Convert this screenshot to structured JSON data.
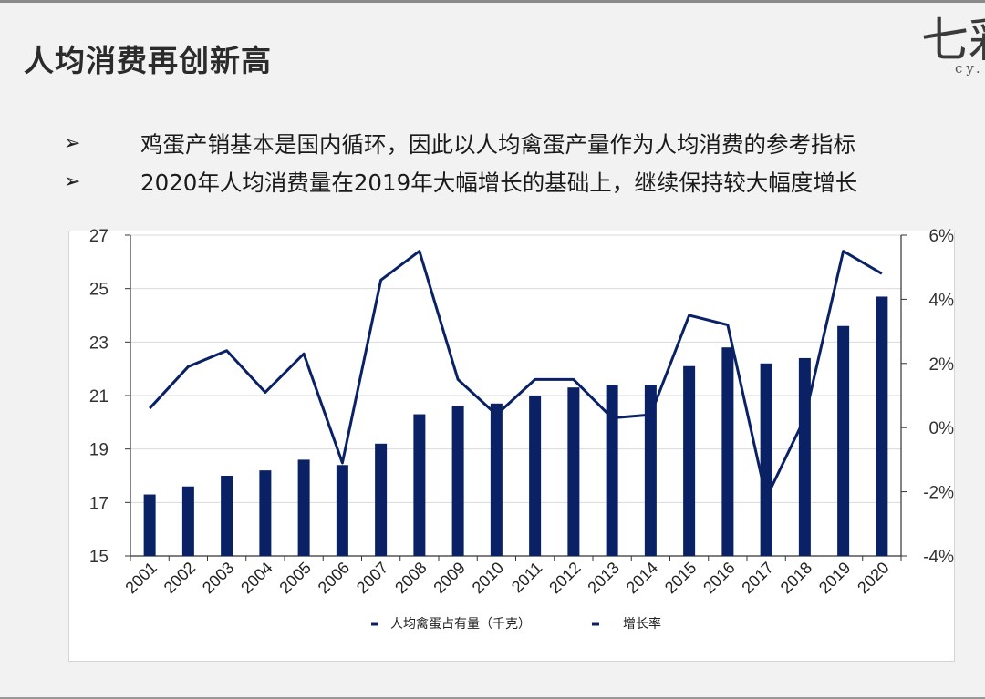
{
  "slide": {
    "title": "人均消费再创新高",
    "logo_glyph": "七彩",
    "logo_sub": "cy..."
  },
  "bullets": [
    {
      "icon": "arrow-bullet-icon",
      "marker": "➢",
      "text": "鸡蛋产销基本是国内循环，因此以人均禽蛋产量作为人均消费的参考指标"
    },
    {
      "icon": "arrow-bullet-icon",
      "marker": "➢",
      "text": "2020年人均消费量在2019年大幅增长的基础上，继续保持较大幅度增长"
    }
  ],
  "chart_data": {
    "type": "bar+line",
    "categories": [
      "2001",
      "2002",
      "2003",
      "2004",
      "2005",
      "2006",
      "2007",
      "2008",
      "2009",
      "2010",
      "2011",
      "2012",
      "2013",
      "2014",
      "2015",
      "2016",
      "2017",
      "2018",
      "2019",
      "2020"
    ],
    "series": [
      {
        "name": "人均禽蛋占有量（千克）",
        "type": "bar",
        "axis": "left",
        "color": "#0a2165",
        "values": [
          17.3,
          17.6,
          18.0,
          18.2,
          18.6,
          18.4,
          19.2,
          20.3,
          20.6,
          20.7,
          21.0,
          21.3,
          21.4,
          21.4,
          22.1,
          22.8,
          22.2,
          22.4,
          23.6,
          24.7
        ]
      },
      {
        "name": "增长率",
        "type": "line",
        "axis": "right",
        "color": "#0a2165",
        "values": [
          0.6,
          1.9,
          2.4,
          1.1,
          2.3,
          -1.1,
          4.6,
          5.5,
          1.5,
          0.4,
          1.5,
          1.5,
          0.3,
          0.4,
          3.5,
          3.2,
          -2.2,
          0.3,
          5.5,
          4.8
        ]
      }
    ],
    "y_left": {
      "min": 15,
      "max": 27,
      "ticks": [
        15,
        17,
        19,
        21,
        23,
        25,
        27
      ]
    },
    "y_right": {
      "min": -4,
      "max": 6,
      "ticks": [
        "-4%",
        "-2%",
        "0%",
        "2%",
        "4%",
        "6%"
      ]
    },
    "grid": true,
    "legend": "bottom-center"
  }
}
